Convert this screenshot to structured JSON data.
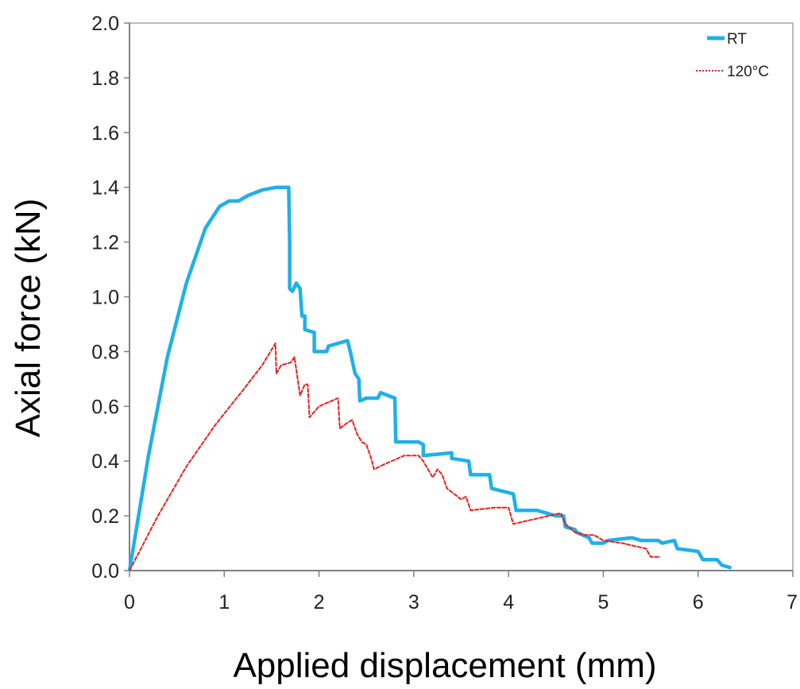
{
  "chart_data": {
    "type": "line",
    "xlabel": "Applied displacement (mm)",
    "ylabel": "Axial force (kN)",
    "xlim": [
      0,
      7
    ],
    "ylim": [
      0,
      2.0
    ],
    "x_ticks": [
      "0",
      "1",
      "2",
      "3",
      "4",
      "5",
      "6",
      "7"
    ],
    "y_ticks": [
      "0.0",
      "0.2",
      "0.4",
      "0.6",
      "0.8",
      "1.0",
      "1.2",
      "1.4",
      "1.6",
      "1.8",
      "2.0"
    ],
    "grid": false,
    "legend_position": "top-right",
    "series": [
      {
        "name": "RT",
        "color": "#1fb0e8",
        "style": "solid",
        "x": [
          0,
          0.2,
          0.4,
          0.6,
          0.8,
          0.95,
          1.05,
          1.15,
          1.25,
          1.4,
          1.55,
          1.68,
          1.69,
          1.69,
          1.72,
          1.76,
          1.8,
          1.82,
          1.85,
          1.85,
          1.95,
          1.95,
          2.08,
          2.1,
          2.3,
          2.33,
          2.38,
          2.42,
          2.43,
          2.5,
          2.62,
          2.65,
          2.8,
          2.81,
          3.05,
          3.1,
          3.1,
          3.4,
          3.4,
          3.58,
          3.6,
          3.8,
          3.82,
          4.05,
          4.08,
          4.3,
          4.5,
          4.58,
          4.6,
          4.7,
          4.72,
          4.78,
          4.85,
          4.88,
          5.0,
          5.05,
          5.3,
          5.4,
          5.58,
          5.62,
          5.75,
          5.78,
          6.0,
          6.05,
          6.2,
          6.25,
          6.35
        ],
        "values": [
          0,
          0.42,
          0.78,
          1.05,
          1.25,
          1.33,
          1.35,
          1.35,
          1.37,
          1.39,
          1.4,
          1.4,
          1.2,
          1.03,
          1.02,
          1.05,
          1.03,
          0.93,
          0.93,
          0.88,
          0.87,
          0.8,
          0.8,
          0.82,
          0.84,
          0.8,
          0.72,
          0.7,
          0.62,
          0.63,
          0.63,
          0.65,
          0.63,
          0.47,
          0.47,
          0.46,
          0.42,
          0.43,
          0.41,
          0.4,
          0.35,
          0.35,
          0.3,
          0.28,
          0.22,
          0.22,
          0.2,
          0.2,
          0.16,
          0.15,
          0.14,
          0.13,
          0.12,
          0.1,
          0.1,
          0.11,
          0.12,
          0.11,
          0.11,
          0.1,
          0.11,
          0.08,
          0.07,
          0.04,
          0.04,
          0.02,
          0.01
        ]
      },
      {
        "name": "120°C",
        "color": "#e8201e",
        "style": "dotted",
        "x": [
          0,
          0.3,
          0.6,
          0.9,
          1.2,
          1.4,
          1.54,
          1.55,
          1.6,
          1.7,
          1.74,
          1.8,
          1.85,
          1.88,
          1.9,
          2.0,
          2.2,
          2.22,
          2.3,
          2.35,
          2.4,
          2.45,
          2.5,
          2.55,
          2.58,
          2.7,
          2.9,
          3.05,
          3.1,
          3.2,
          3.25,
          3.3,
          3.35,
          3.5,
          3.55,
          3.6,
          3.85,
          3.9,
          4.0,
          4.05,
          4.3,
          4.55,
          4.6,
          4.7,
          4.8,
          4.9,
          5.0,
          5.2,
          5.45,
          5.5,
          5.6
        ],
        "values": [
          0,
          0.2,
          0.38,
          0.53,
          0.66,
          0.75,
          0.83,
          0.72,
          0.75,
          0.76,
          0.78,
          0.64,
          0.68,
          0.68,
          0.56,
          0.6,
          0.63,
          0.52,
          0.54,
          0.55,
          0.5,
          0.47,
          0.46,
          0.41,
          0.37,
          0.39,
          0.42,
          0.42,
          0.4,
          0.34,
          0.37,
          0.35,
          0.3,
          0.26,
          0.27,
          0.22,
          0.23,
          0.23,
          0.23,
          0.17,
          0.19,
          0.21,
          0.17,
          0.14,
          0.13,
          0.13,
          0.11,
          0.1,
          0.08,
          0.05,
          0.05
        ]
      }
    ]
  }
}
